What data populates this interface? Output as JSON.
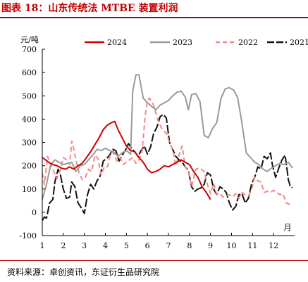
{
  "figure_title": "图表 18：山东传统法 MTBE 装置利润",
  "source": "资料来源：卓创资讯，东证衍生品研究院",
  "colors": {
    "accent": "#c00000",
    "2024": "#cc0000",
    "2023": "#9a9a9a",
    "2022": "#f08a8a",
    "2021": "#111111"
  },
  "chart_data": {
    "type": "line",
    "ylabel": "元/吨",
    "xlabel": "月",
    "ylim": [
      -100,
      700
    ],
    "yticks": [
      -100,
      0,
      100,
      200,
      300,
      400,
      500,
      600,
      700
    ],
    "xlim": [
      1,
      13
    ],
    "xticks": [
      1,
      2,
      3,
      4,
      5,
      6,
      7,
      8,
      9,
      10,
      11,
      12
    ],
    "grid": false,
    "legend_position": "top",
    "series": [
      {
        "name": "2024",
        "dash": "solid",
        "points": [
          [
            1.0,
            235
          ],
          [
            1.15,
            225
          ],
          [
            1.3,
            215
          ],
          [
            1.5,
            205
          ],
          [
            1.7,
            200
          ],
          [
            1.9,
            190
          ],
          [
            2.1,
            185
          ],
          [
            2.3,
            195
          ],
          [
            2.5,
            185
          ],
          [
            2.7,
            200
          ],
          [
            2.9,
            210
          ],
          [
            3.1,
            235
          ],
          [
            3.3,
            260
          ],
          [
            3.5,
            290
          ],
          [
            3.7,
            320
          ],
          [
            3.9,
            355
          ],
          [
            4.1,
            375
          ],
          [
            4.3,
            385
          ],
          [
            4.45,
            390
          ],
          [
            4.6,
            355
          ],
          [
            4.8,
            320
          ],
          [
            5.0,
            285
          ],
          [
            5.2,
            265
          ],
          [
            5.4,
            260
          ],
          [
            5.6,
            235
          ],
          [
            5.8,
            215
          ],
          [
            6.0,
            185
          ],
          [
            6.2,
            170
          ],
          [
            6.4,
            175
          ],
          [
            6.6,
            185
          ],
          [
            6.8,
            200
          ],
          [
            7.0,
            195
          ],
          [
            7.2,
            205
          ],
          [
            7.4,
            215
          ],
          [
            7.6,
            225
          ],
          [
            7.8,
            215
          ],
          [
            8.0,
            205
          ],
          [
            8.2,
            175
          ],
          [
            8.4,
            150
          ],
          [
            8.6,
            110
          ],
          [
            8.8,
            85
          ],
          [
            9.0,
            55
          ]
        ]
      },
      {
        "name": "2023",
        "dash": "solid",
        "points": [
          [
            1.0,
            55
          ],
          [
            1.2,
            120
          ],
          [
            1.4,
            205
          ],
          [
            1.6,
            225
          ],
          [
            1.8,
            215
          ],
          [
            2.0,
            205
          ],
          [
            2.2,
            210
          ],
          [
            2.4,
            215
          ],
          [
            2.6,
            175
          ],
          [
            2.8,
            200
          ],
          [
            3.0,
            205
          ],
          [
            3.2,
            225
          ],
          [
            3.4,
            245
          ],
          [
            3.6,
            270
          ],
          [
            3.8,
            265
          ],
          [
            4.0,
            275
          ],
          [
            4.2,
            265
          ],
          [
            4.4,
            260
          ],
          [
            4.6,
            240
          ],
          [
            4.8,
            255
          ],
          [
            5.0,
            265
          ],
          [
            5.2,
            250
          ],
          [
            5.3,
            520
          ],
          [
            5.45,
            590
          ],
          [
            5.6,
            590
          ],
          [
            5.8,
            490
          ],
          [
            6.0,
            470
          ],
          [
            6.2,
            455
          ],
          [
            6.4,
            440
          ],
          [
            6.6,
            460
          ],
          [
            6.8,
            470
          ],
          [
            7.0,
            480
          ],
          [
            7.2,
            500
          ],
          [
            7.4,
            515
          ],
          [
            7.6,
            520
          ],
          [
            7.8,
            495
          ],
          [
            7.95,
            440
          ],
          [
            8.1,
            505
          ],
          [
            8.3,
            510
          ],
          [
            8.5,
            475
          ],
          [
            8.7,
            330
          ],
          [
            8.9,
            320
          ],
          [
            9.1,
            360
          ],
          [
            9.3,
            385
          ],
          [
            9.5,
            490
          ],
          [
            9.7,
            530
          ],
          [
            9.9,
            535
          ],
          [
            10.1,
            525
          ],
          [
            10.3,
            490
          ],
          [
            10.5,
            380
          ],
          [
            10.7,
            255
          ],
          [
            10.9,
            235
          ],
          [
            11.1,
            215
          ],
          [
            11.3,
            205
          ],
          [
            11.5,
            185
          ],
          [
            11.7,
            175
          ],
          [
            11.9,
            190
          ],
          [
            12.1,
            200
          ],
          [
            12.3,
            210
          ],
          [
            12.5,
            205
          ],
          [
            12.7,
            215
          ],
          [
            12.9,
            190
          ]
        ]
      },
      {
        "name": "2022",
        "dash": "dashed",
        "points": [
          [
            1.0,
            170
          ],
          [
            1.1,
            120
          ],
          [
            1.25,
            240
          ],
          [
            1.4,
            205
          ],
          [
            1.55,
            175
          ],
          [
            1.7,
            145
          ],
          [
            1.85,
            180
          ],
          [
            2.0,
            235
          ],
          [
            2.15,
            225
          ],
          [
            2.3,
            205
          ],
          [
            2.4,
            305
          ],
          [
            2.5,
            270
          ],
          [
            2.6,
            225
          ],
          [
            2.75,
            170
          ],
          [
            2.9,
            140
          ],
          [
            3.05,
            150
          ],
          [
            3.2,
            185
          ],
          [
            3.35,
            175
          ],
          [
            3.5,
            245
          ],
          [
            3.65,
            230
          ],
          [
            3.8,
            160
          ],
          [
            3.95,
            195
          ],
          [
            4.1,
            195
          ],
          [
            4.25,
            255
          ],
          [
            4.4,
            255
          ],
          [
            4.55,
            220
          ],
          [
            4.7,
            235
          ],
          [
            4.85,
            205
          ],
          [
            5.0,
            215
          ],
          [
            5.15,
            225
          ],
          [
            5.3,
            235
          ],
          [
            5.45,
            210
          ],
          [
            5.6,
            225
          ],
          [
            5.75,
            265
          ],
          [
            5.9,
            420
          ],
          [
            6.0,
            480
          ],
          [
            6.1,
            490
          ],
          [
            6.3,
            460
          ],
          [
            6.5,
            395
          ],
          [
            6.7,
            355
          ],
          [
            6.9,
            340
          ],
          [
            7.05,
            300
          ],
          [
            7.2,
            270
          ],
          [
            7.35,
            200
          ],
          [
            7.5,
            245
          ],
          [
            7.65,
            285
          ],
          [
            7.8,
            195
          ],
          [
            7.95,
            175
          ],
          [
            8.1,
            110
          ],
          [
            8.3,
            185
          ],
          [
            8.5,
            190
          ],
          [
            8.7,
            175
          ],
          [
            8.85,
            120
          ],
          [
            9.0,
            80
          ],
          [
            9.15,
            125
          ],
          [
            9.3,
            75
          ],
          [
            9.45,
            80
          ],
          [
            9.6,
            65
          ],
          [
            9.75,
            70
          ],
          [
            9.9,
            75
          ],
          [
            10.05,
            65
          ],
          [
            10.2,
            80
          ],
          [
            10.35,
            60
          ],
          [
            10.5,
            85
          ],
          [
            10.65,
            75
          ],
          [
            10.8,
            70
          ],
          [
            10.95,
            95
          ],
          [
            11.1,
            150
          ],
          [
            11.25,
            135
          ],
          [
            11.4,
            130
          ],
          [
            11.55,
            85
          ],
          [
            11.7,
            90
          ],
          [
            11.85,
            85
          ],
          [
            12.0,
            95
          ],
          [
            12.15,
            85
          ],
          [
            12.3,
            75
          ],
          [
            12.45,
            80
          ],
          [
            12.6,
            40
          ],
          [
            12.75,
            35
          ],
          [
            12.9,
            45
          ]
        ]
      },
      {
        "name": "2021",
        "dash": "dashed",
        "points": [
          [
            1.0,
            -35
          ],
          [
            1.1,
            -20
          ],
          [
            1.2,
            -25
          ],
          [
            1.35,
            40
          ],
          [
            1.5,
            55
          ],
          [
            1.6,
            130
          ],
          [
            1.75,
            185
          ],
          [
            1.85,
            165
          ],
          [
            2.0,
            100
          ],
          [
            2.15,
            60
          ],
          [
            2.3,
            65
          ],
          [
            2.4,
            130
          ],
          [
            2.55,
            110
          ],
          [
            2.7,
            40
          ],
          [
            2.85,
            20
          ],
          [
            3.0,
            -5
          ],
          [
            3.15,
            75
          ],
          [
            3.3,
            120
          ],
          [
            3.45,
            100
          ],
          [
            3.6,
            135
          ],
          [
            3.75,
            155
          ],
          [
            3.9,
            220
          ],
          [
            4.05,
            230
          ],
          [
            4.2,
            245
          ],
          [
            4.35,
            270
          ],
          [
            4.5,
            265
          ],
          [
            4.65,
            220
          ],
          [
            4.8,
            245
          ],
          [
            4.95,
            265
          ],
          [
            5.1,
            295
          ],
          [
            5.25,
            275
          ],
          [
            5.4,
            260
          ],
          [
            5.55,
            240
          ],
          [
            5.7,
            265
          ],
          [
            5.85,
            285
          ],
          [
            6.0,
            250
          ],
          [
            6.15,
            280
          ],
          [
            6.3,
            340
          ],
          [
            6.45,
            365
          ],
          [
            6.6,
            410
          ],
          [
            6.75,
            420
          ],
          [
            6.9,
            405
          ],
          [
            7.05,
            300
          ],
          [
            7.2,
            270
          ],
          [
            7.35,
            240
          ],
          [
            7.5,
            225
          ],
          [
            7.65,
            215
          ],
          [
            7.8,
            195
          ],
          [
            7.95,
            180
          ],
          [
            8.1,
            110
          ],
          [
            8.25,
            90
          ],
          [
            8.4,
            100
          ],
          [
            8.55,
            105
          ],
          [
            8.7,
            120
          ],
          [
            8.85,
            170
          ],
          [
            9.0,
            160
          ],
          [
            9.15,
            100
          ],
          [
            9.3,
            75
          ],
          [
            9.45,
            110
          ],
          [
            9.6,
            100
          ],
          [
            9.75,
            85
          ],
          [
            9.9,
            40
          ],
          [
            10.05,
            10
          ],
          [
            10.2,
            25
          ],
          [
            10.35,
            75
          ],
          [
            10.5,
            80
          ],
          [
            10.65,
            40
          ],
          [
            10.8,
            60
          ],
          [
            10.95,
            120
          ],
          [
            11.1,
            150
          ],
          [
            11.25,
            195
          ],
          [
            11.4,
            185
          ],
          [
            11.55,
            240
          ],
          [
            11.7,
            230
          ],
          [
            11.85,
            255
          ],
          [
            11.95,
            200
          ],
          [
            12.1,
            150
          ],
          [
            12.25,
            190
          ],
          [
            12.4,
            225
          ],
          [
            12.55,
            245
          ],
          [
            12.7,
            140
          ],
          [
            12.8,
            110
          ],
          [
            12.9,
            105
          ]
        ]
      }
    ]
  }
}
